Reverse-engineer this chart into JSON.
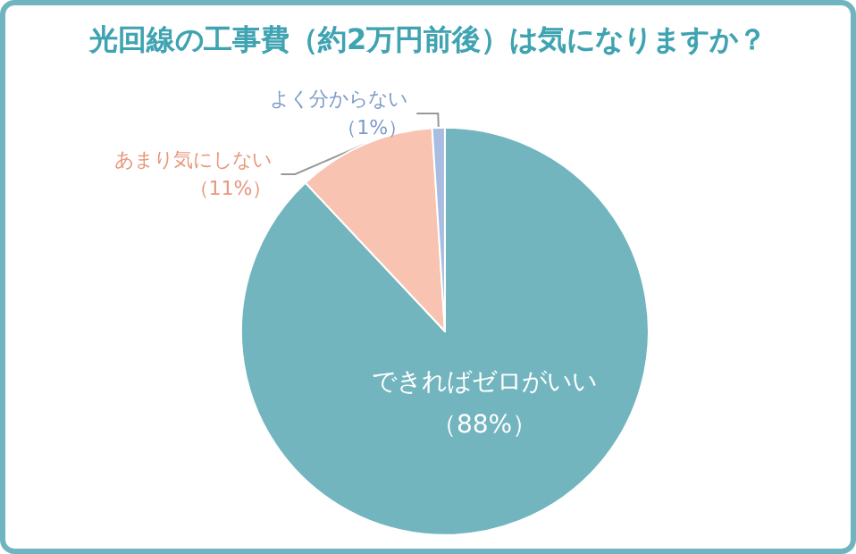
{
  "chart_data": {
    "type": "pie",
    "title": "光回線の工事費（約2万円前後）は気になりますか？",
    "categories": [
      "できればゼロがいい",
      "あまり気にしない",
      "よく分からない"
    ],
    "values": [
      88,
      11,
      1
    ],
    "colors": [
      "#72b5bf",
      "#f9c3b1",
      "#a9bde0"
    ],
    "value_labels": [
      "（88%）",
      "（11%）",
      "（1%）"
    ],
    "legend": false
  }
}
